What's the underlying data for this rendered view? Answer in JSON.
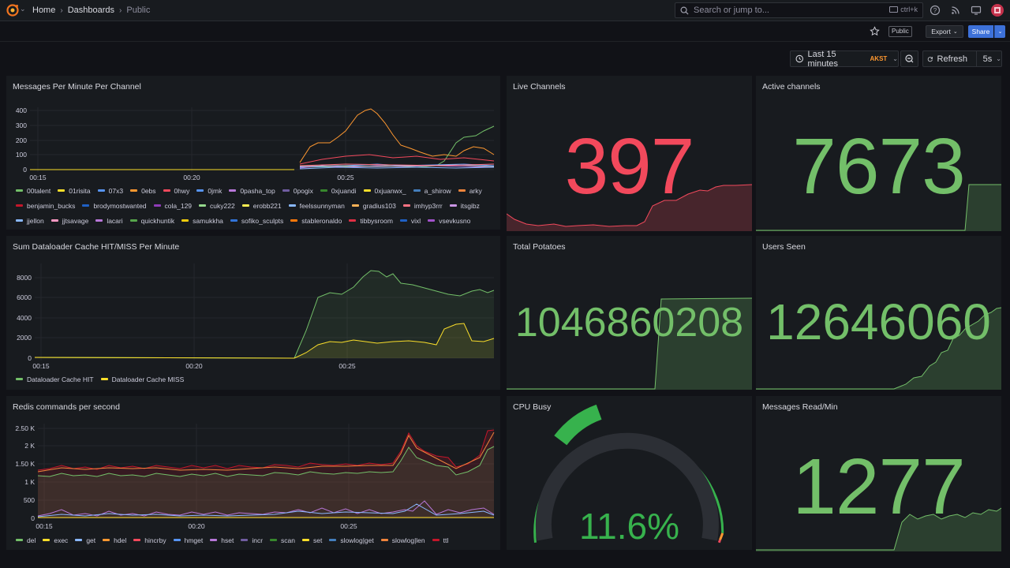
{
  "nav": {
    "breadcrumbs": [
      "Home",
      "Dashboards",
      "Public"
    ],
    "search_placeholder": "Search or jump to...",
    "search_shortcut": "ctrl+k"
  },
  "toolbar": {
    "public_badge": "Public",
    "export_label": "Export",
    "share_label": "Share",
    "time_range": "Last 15 minutes",
    "timezone": "AKST",
    "refresh_label": "Refresh",
    "refresh_interval": "5s"
  },
  "colors": {
    "accent_blue": "#3d71d9",
    "stat_green": "#73bf69",
    "stat_red": "#f2495c",
    "panel_bg": "#181b1f",
    "page_bg": "#111217"
  },
  "panels": {
    "messages": {
      "title": "Messages Per Minute Per Channel",
      "legend": [
        {
          "label": "00talent",
          "color": "#73bf69"
        },
        {
          "label": "01risita",
          "color": "#fade2a"
        },
        {
          "label": "07x3",
          "color": "#5794f2"
        },
        {
          "label": "0ebs",
          "color": "#ff9830"
        },
        {
          "label": "0hwy",
          "color": "#f2495c"
        },
        {
          "label": "0jmk",
          "color": "#5794f2"
        },
        {
          "label": "0pasha_top",
          "color": "#b877d9"
        },
        {
          "label": "0pogix",
          "color": "#705da0"
        },
        {
          "label": "0xjuandi",
          "color": "#37872d"
        },
        {
          "label": "0xjuanwx_",
          "color": "#fade2a"
        },
        {
          "label": "a_shirow",
          "color": "#447ebc"
        },
        {
          "label": "arky",
          "color": "#ef843c"
        },
        {
          "label": "benjamin_bucks",
          "color": "#c4162a"
        },
        {
          "label": "brodymostwanted",
          "color": "#1f60c4"
        },
        {
          "label": "cola_129",
          "color": "#8f3bb8"
        },
        {
          "label": "cuky222",
          "color": "#96d98d"
        },
        {
          "label": "erobb221",
          "color": "#ffee52"
        },
        {
          "label": "feelssunnyman",
          "color": "#8ab8ff"
        },
        {
          "label": "gradius103",
          "color": "#ffb357"
        },
        {
          "label": "imhyp3rrr",
          "color": "#ff7383"
        },
        {
          "label": "itsgibz",
          "color": "#ca95e5"
        },
        {
          "label": "jjellon",
          "color": "#8ab8ff"
        },
        {
          "label": "jjtsavage",
          "color": "#ff99c3"
        },
        {
          "label": "lacari",
          "color": "#b877d9"
        },
        {
          "label": "quickhuntik",
          "color": "#56a64b"
        },
        {
          "label": "samukkha",
          "color": "#f2cc0c"
        },
        {
          "label": "sofiko_sculpts",
          "color": "#3274d9"
        },
        {
          "label": "stableronaldo",
          "color": "#ff780a"
        },
        {
          "label": "tibbysroom",
          "color": "#e02f44"
        },
        {
          "label": "vixl",
          "color": "#1f60c4"
        },
        {
          "label": "vsevkusno",
          "color": "#a352cc"
        }
      ]
    },
    "dataloader": {
      "title": "Sum Dataloader Cache HIT/MISS Per Minute",
      "legend": [
        {
          "label": "Dataloader Cache HIT",
          "color": "#73bf69"
        },
        {
          "label": "Dataloader Cache MISS",
          "color": "#fade2a"
        }
      ]
    },
    "redis": {
      "title": "Redis commands per second",
      "legend": [
        {
          "label": "del",
          "color": "#73bf69"
        },
        {
          "label": "exec",
          "color": "#fade2a"
        },
        {
          "label": "get",
          "color": "#8ab8ff"
        },
        {
          "label": "hdel",
          "color": "#ff9830"
        },
        {
          "label": "hincrby",
          "color": "#f2495c"
        },
        {
          "label": "hmget",
          "color": "#5794f2"
        },
        {
          "label": "hset",
          "color": "#b877d9"
        },
        {
          "label": "incr",
          "color": "#705da0"
        },
        {
          "label": "scan",
          "color": "#37872d"
        },
        {
          "label": "set",
          "color": "#fade2a"
        },
        {
          "label": "slowlog|get",
          "color": "#447ebc"
        },
        {
          "label": "slowlog|len",
          "color": "#ef843c"
        },
        {
          "label": "ttl",
          "color": "#c4162a"
        }
      ]
    },
    "live_channels": {
      "title": "Live Channels",
      "value": "397"
    },
    "active_channels": {
      "title": "Active channels",
      "value": "7673"
    },
    "total_potatoes": {
      "title": "Total Potatoes",
      "value": "1046860208"
    },
    "users_seen": {
      "title": "Users Seen",
      "value": "12646060"
    },
    "cpu_busy": {
      "title": "CPU Busy",
      "value": "11.6%",
      "percent": 11.6
    },
    "messages_read": {
      "title": "Messages Read/Min",
      "value": "1277"
    }
  },
  "chart_data": [
    {
      "type": "line",
      "title": "Messages Per Minute Per Channel",
      "x_ticks": [
        "00:15",
        "00:20",
        "00:25"
      ],
      "yticks": [
        0,
        100,
        200,
        300,
        400
      ],
      "ylim": [
        0,
        420
      ],
      "series": [
        {
          "name": "0ebs",
          "x": [
            "00:15",
            "00:21",
            "00:24",
            "00:25",
            "00:26",
            "00:27",
            "00:28",
            "00:29",
            "00:30"
          ],
          "values": [
            0,
            0,
            60,
            280,
            410,
            220,
            90,
            80,
            110
          ]
        },
        {
          "name": "00talent",
          "x": [
            "00:15",
            "00:21",
            "00:24",
            "00:25",
            "00:26",
            "00:27",
            "00:28",
            "00:29",
            "00:30"
          ],
          "values": [
            0,
            0,
            20,
            20,
            30,
            20,
            40,
            180,
            300
          ]
        }
      ]
    },
    {
      "type": "area",
      "title": "Sum Dataloader Cache HIT/MISS Per Minute",
      "x_ticks": [
        "00:15",
        "00:20",
        "00:25"
      ],
      "yticks": [
        0,
        2000,
        4000,
        6000,
        8000
      ],
      "ylim": [
        0,
        9000
      ],
      "series": [
        {
          "name": "Dataloader Cache HIT",
          "x": [
            "00:15",
            "00:23",
            "00:24",
            "00:25",
            "00:26",
            "00:27",
            "00:28",
            "00:29",
            "00:30"
          ],
          "values": [
            100,
            0,
            6500,
            6800,
            8500,
            7500,
            6400,
            6800,
            6600
          ]
        },
        {
          "name": "Dataloader Cache MISS",
          "x": [
            "00:15",
            "00:23",
            "00:24",
            "00:25",
            "00:26",
            "00:27",
            "00:28",
            "00:29",
            "00:30"
          ],
          "values": [
            100,
            0,
            1300,
            1600,
            1500,
            1300,
            1200,
            3400,
            1900
          ]
        }
      ]
    },
    {
      "type": "area",
      "title": "Redis commands per second",
      "x_ticks": [
        "00:15",
        "00:20",
        "00:25"
      ],
      "yticks": [
        "0",
        "500",
        "1 K",
        "1.50 K",
        "2 K",
        "2.50 K"
      ],
      "ylim": [
        0,
        2600
      ],
      "series": [
        {
          "name": "ttl",
          "x": [
            "00:15",
            "00:18",
            "00:21",
            "00:24",
            "00:26",
            "00:27",
            "00:28",
            "00:29",
            "00:30"
          ],
          "values": [
            1400,
            1500,
            1550,
            1580,
            2400,
            1800,
            1550,
            1600,
            2450
          ]
        },
        {
          "name": "del",
          "x": [
            "00:15",
            "00:18",
            "00:21",
            "00:24",
            "00:26",
            "00:27",
            "00:28",
            "00:29",
            "00:30"
          ],
          "values": [
            1250,
            1300,
            1300,
            1350,
            2050,
            1500,
            1300,
            1350,
            2000
          ]
        },
        {
          "name": "hset",
          "x": [
            "00:15",
            "00:18",
            "00:21",
            "00:24",
            "00:26",
            "00:27",
            "00:28",
            "00:29",
            "00:30"
          ],
          "values": [
            100,
            150,
            120,
            300,
            200,
            400,
            150,
            300,
            150
          ]
        }
      ]
    }
  ]
}
